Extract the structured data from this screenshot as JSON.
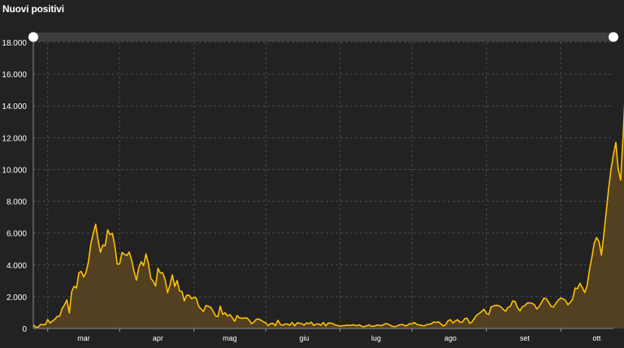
{
  "chart_data": {
    "type": "area",
    "title": "Nuovi positivi",
    "ylim": [
      0,
      18000
    ],
    "yticks": [
      {
        "value": 0,
        "label": "0"
      },
      {
        "value": 2000,
        "label": "2.000"
      },
      {
        "value": 4000,
        "label": "4.000"
      },
      {
        "value": 6000,
        "label": "6.000"
      },
      {
        "value": 8000,
        "label": "8.000"
      },
      {
        "value": 10000,
        "label": "10.000"
      },
      {
        "value": 12000,
        "label": "12.000"
      },
      {
        "value": 14000,
        "label": "14.000"
      },
      {
        "value": 16000,
        "label": "16.000"
      },
      {
        "value": 18000,
        "label": "18.000"
      }
    ],
    "month_labels": [
      {
        "label": "mar",
        "day": 15
      },
      {
        "label": "apr",
        "day": 46
      },
      {
        "label": "mag",
        "day": 76
      },
      {
        "label": "giu",
        "day": 107
      },
      {
        "label": "lug",
        "day": 137
      },
      {
        "label": "ago",
        "day": 168
      },
      {
        "label": "set",
        "day": 199
      },
      {
        "label": "ott",
        "day": 229
      }
    ],
    "month_boundaries": [
      0,
      30,
      61,
      91,
      122,
      152,
      183,
      214
    ],
    "grid": true,
    "line_color": "#ffc107",
    "fill_color": "#5a4520",
    "x_start_day": -6,
    "x_end_day": 236,
    "series": [
      {
        "start_day": -6,
        "values": [
          221,
          93,
          78,
          250,
          238,
          240,
          566,
          342,
          466,
          587,
          769,
          778,
          1247,
          1492,
          1797,
          977,
          2313,
          2651,
          2547,
          3497,
          3590,
          3233,
          3526,
          4207,
          5322,
          5986,
          6557,
          5560,
          4789,
          5249,
          5210,
          6203,
          5909,
          5974,
          5217,
          4050,
          4053,
          4782,
          4668,
          4585,
          4805,
          4316,
          3599,
          3039,
          3836,
          4204,
          3951,
          4694,
          4092,
          3153,
          2972,
          2667,
          3786,
          3493,
          3491,
          3047,
          2256,
          2729,
          3370,
          2646,
          3021,
          2357,
          2324,
          1739,
          2091,
          2086,
          1872,
          1965,
          1900,
          1389,
          1221,
          1075,
          1444,
          1401,
          1327,
          1083,
          802,
          744,
          1402,
          888,
          992,
          789,
          875,
          675,
          451,
          813,
          665,
          642,
          652,
          669,
          531,
          300,
          397,
          584,
          593,
          516,
          416,
          355,
          178,
          318,
          321,
          177,
          518,
          270,
          197,
          280,
          283,
          202,
          379,
          163,
          346,
          338,
          301,
          210,
          355,
          300,
          397,
          187,
          280,
          283,
          202,
          379,
          163,
          346,
          338,
          301,
          210,
          192,
          138,
          181,
          182,
          208,
          190,
          224,
          218,
          167,
          235,
          128,
          114,
          162,
          229,
          138,
          142,
          192,
          208,
          168,
          234,
          306,
          282,
          190,
          129,
          114,
          178,
          233,
          255,
          170,
          188,
          306,
          280,
          379,
          252,
          219,
          190,
          159,
          239,
          260,
          295,
          402,
          386,
          412,
          289,
          159,
          239,
          481,
          552,
          347,
          463,
          552,
          384,
          401,
          629,
          642,
          320,
          403,
          642,
          845,
          947,
          1071,
          1210,
          953,
          878,
          1367,
          1411,
          1460,
          1444,
          1365,
          1209,
          1078,
          1326,
          1397,
          1733,
          1694,
          1297,
          1108,
          1370,
          1434,
          1597,
          1616,
          1585,
          1501,
          1229,
          1380,
          1638,
          1907,
          1869,
          1640,
          1392,
          1350,
          1587,
          1785,
          1912,
          1869,
          1766,
          1494,
          1648,
          1851,
          2548,
          2499,
          2844,
          2578,
          2257,
          2677,
          3678,
          4458,
          5372,
          5724,
          5456,
          4619,
          5901,
          7332,
          8804,
          10010,
          10925,
          11705,
          10010,
          9338,
          12000,
          15200
        ]
      }
    ]
  }
}
